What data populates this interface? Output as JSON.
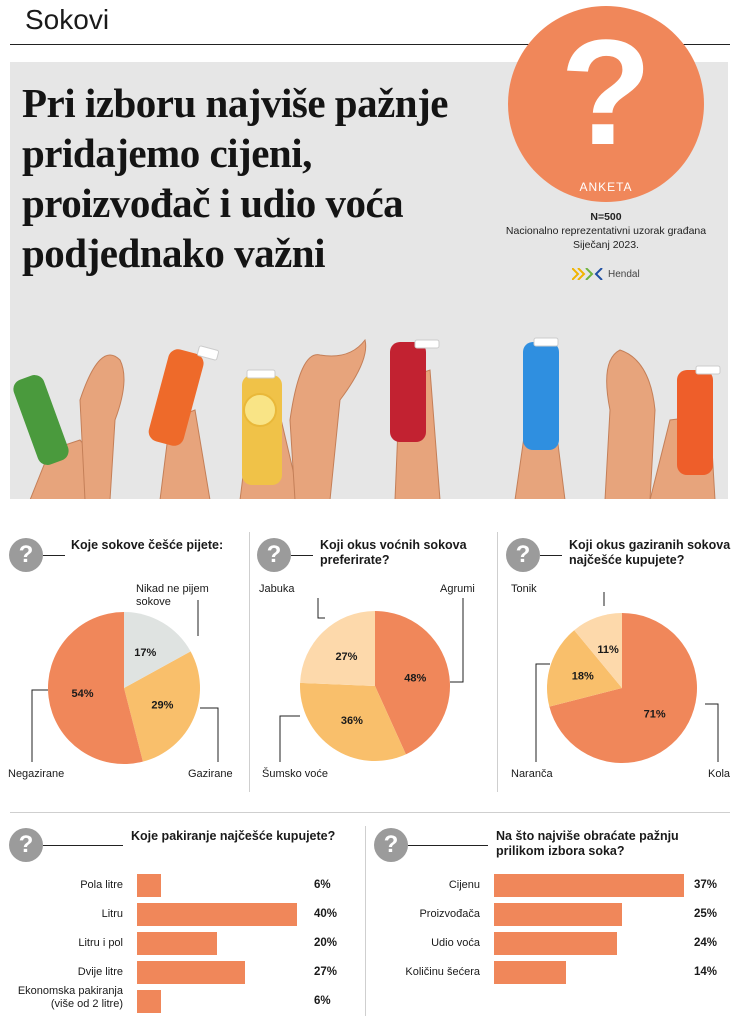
{
  "header": {
    "section": "Sokovi"
  },
  "hero": {
    "headline": "Pri izboru najviše pažnje pridajemo cijeni, proizvođač i udio voća podjednako važni",
    "badge_symbol": "?",
    "badge_label": "ANKETA",
    "sample": "N=500",
    "sample_note": "Nacionalno reprezentativni uzorak građana",
    "date": "Siječanj 2023.",
    "brand": "Hendal"
  },
  "colors": {
    "accent": "#f0875a",
    "light_orange": "#f9bf6b",
    "peach": "#fdd9ab",
    "gray_slice": "#dfe3e1",
    "question_gray": "#9b9b9b"
  },
  "icons": {
    "question": "question-mark-icon"
  },
  "chart_data": [
    {
      "type": "pie",
      "title": "Koje sokove češće pijete:",
      "categories": [
        "Negazirane",
        "Gazirane",
        "Nikad ne pijem sokove"
      ],
      "values": [
        54,
        29,
        17
      ],
      "labels": [
        "54%",
        "29%",
        "17%"
      ],
      "colors": [
        "#f0875a",
        "#f9bf6b",
        "#dfe3e1"
      ]
    },
    {
      "type": "pie",
      "title": "Koji okus voćnih sokova preferirate?",
      "categories": [
        "Agrumi",
        "Šumsko voće",
        "Jabuka"
      ],
      "values": [
        48,
        36,
        27
      ],
      "labels": [
        "48%",
        "36%",
        "27%"
      ],
      "colors": [
        "#f0875a",
        "#f9bf6b",
        "#fdd9ab"
      ]
    },
    {
      "type": "pie",
      "title": "Koji okus gaziranih sokova najčešće kupujete?",
      "categories": [
        "Kola",
        "Naranča",
        "Tonik"
      ],
      "values": [
        71,
        18,
        11
      ],
      "labels": [
        "71%",
        "18%",
        "11%"
      ],
      "colors": [
        "#f0875a",
        "#f9bf6b",
        "#fdd9ab"
      ]
    },
    {
      "type": "bar",
      "orientation": "horizontal",
      "title": "Koje pakiranje najčešće kupujete?",
      "categories": [
        "Pola litre",
        "Litru",
        "Litru i pol",
        "Dvije litre",
        "Ekonomska pakiranja (više od 2 litre)"
      ],
      "values": [
        6,
        40,
        20,
        27,
        6
      ],
      "labels": [
        "6%",
        "40%",
        "20%",
        "27%",
        "6%"
      ]
    },
    {
      "type": "bar",
      "orientation": "horizontal",
      "title": "Na što najviše obraćate pažnju prilikom izbora soka?",
      "categories": [
        "Cijenu",
        "Proizvođača",
        "Udio voća",
        "Količinu šećera"
      ],
      "values": [
        37,
        25,
        24,
        14
      ],
      "labels": [
        "37%",
        "25%",
        "24%",
        "14%"
      ]
    }
  ]
}
